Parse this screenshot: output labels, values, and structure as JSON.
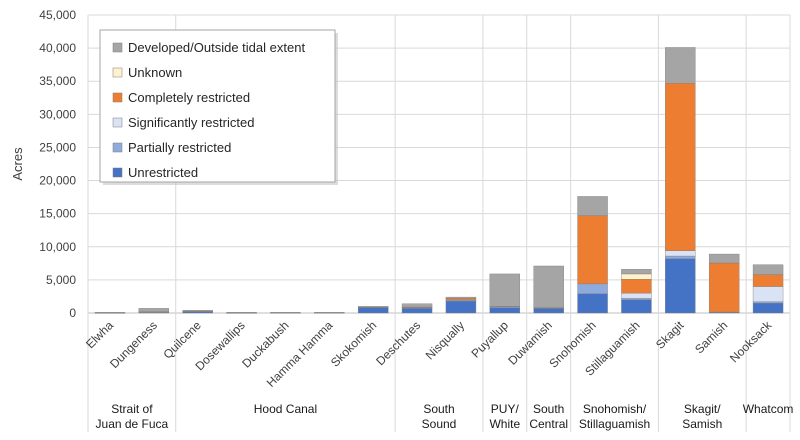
{
  "chart_data": {
    "type": "bar",
    "stacked": true,
    "ylabel": "Acres",
    "ylim": [
      0,
      45000
    ],
    "yticks": [
      0,
      5000,
      10000,
      15000,
      20000,
      25000,
      30000,
      35000,
      40000,
      45000
    ],
    "ytick_labels": [
      "0",
      "5,000",
      "10,000",
      "15,000",
      "20,000",
      "25,000",
      "30,000",
      "35,000",
      "40,000",
      "45,000"
    ],
    "grid": "horizontal",
    "legend_position": "top-left",
    "categories": [
      "Elwha",
      "Dungeness",
      "Quilcene",
      "Dosewallips",
      "Duckabush",
      "Hamma Hamma",
      "Skokomish",
      "Deschutes",
      "Nisqually",
      "Puyallup",
      "Duwamish",
      "Snohomish",
      "Stillaguamish",
      "Skagit",
      "Samish",
      "Nooksack"
    ],
    "groups": [
      {
        "label_lines": [
          "Strait of",
          "Juan de Fuca"
        ],
        "categories": [
          "Elwha",
          "Dungeness"
        ]
      },
      {
        "label_lines": [
          "Hood Canal"
        ],
        "categories": [
          "Quilcene",
          "Dosewallips",
          "Duckabush",
          "Hamma Hamma",
          "Skokomish"
        ]
      },
      {
        "label_lines": [
          "South",
          "Sound"
        ],
        "categories": [
          "Deschutes",
          "Nisqually"
        ]
      },
      {
        "label_lines": [
          "PUY/",
          "White"
        ],
        "categories": [
          "Puyallup"
        ]
      },
      {
        "label_lines": [
          "South",
          "Central"
        ],
        "categories": [
          "Duwamish"
        ]
      },
      {
        "label_lines": [
          "Snohomish/",
          "Stillaguamish"
        ],
        "categories": [
          "Snohomish",
          "Stillaguamish"
        ]
      },
      {
        "label_lines": [
          "Skagit/",
          "Samish"
        ],
        "categories": [
          "Skagit",
          "Samish"
        ]
      },
      {
        "label_lines": [
          "Whatcom"
        ],
        "categories": [
          "Nooksack"
        ]
      }
    ],
    "series": [
      {
        "name": "Unrestricted",
        "color": "#4472c4",
        "values": [
          20,
          80,
          200,
          20,
          30,
          40,
          800,
          700,
          1800,
          800,
          700,
          2900,
          2000,
          8200,
          100,
          1500
        ]
      },
      {
        "name": "Partially restricted",
        "color": "#8faadc",
        "values": [
          0,
          20,
          50,
          0,
          10,
          10,
          50,
          100,
          150,
          150,
          50,
          1500,
          200,
          400,
          50,
          200
        ]
      },
      {
        "name": "Significantly restricted",
        "color": "#dae3f3",
        "values": [
          0,
          0,
          0,
          0,
          0,
          0,
          0,
          0,
          0,
          0,
          0,
          0,
          800,
          800,
          0,
          2300
        ]
      },
      {
        "name": "Completely restricted",
        "color": "#ed7d31",
        "values": [
          0,
          100,
          50,
          10,
          10,
          0,
          50,
          100,
          250,
          50,
          50,
          10300,
          2100,
          25300,
          7400,
          1800
        ]
      },
      {
        "name": "Unknown",
        "color": "#fff2cc",
        "values": [
          0,
          0,
          0,
          0,
          0,
          0,
          0,
          0,
          0,
          0,
          0,
          0,
          800,
          0,
          0,
          0
        ]
      },
      {
        "name": "Developed/Outside tidal extent",
        "color": "#a5a5a5",
        "values": [
          80,
          500,
          100,
          70,
          50,
          50,
          100,
          500,
          200,
          4900,
          6300,
          2900,
          700,
          5400,
          1350,
          1500
        ]
      }
    ],
    "legend_order": [
      "Developed/Outside tidal extent",
      "Unknown",
      "Completely restricted",
      "Significantly restricted",
      "Partially restricted",
      "Unrestricted"
    ]
  }
}
